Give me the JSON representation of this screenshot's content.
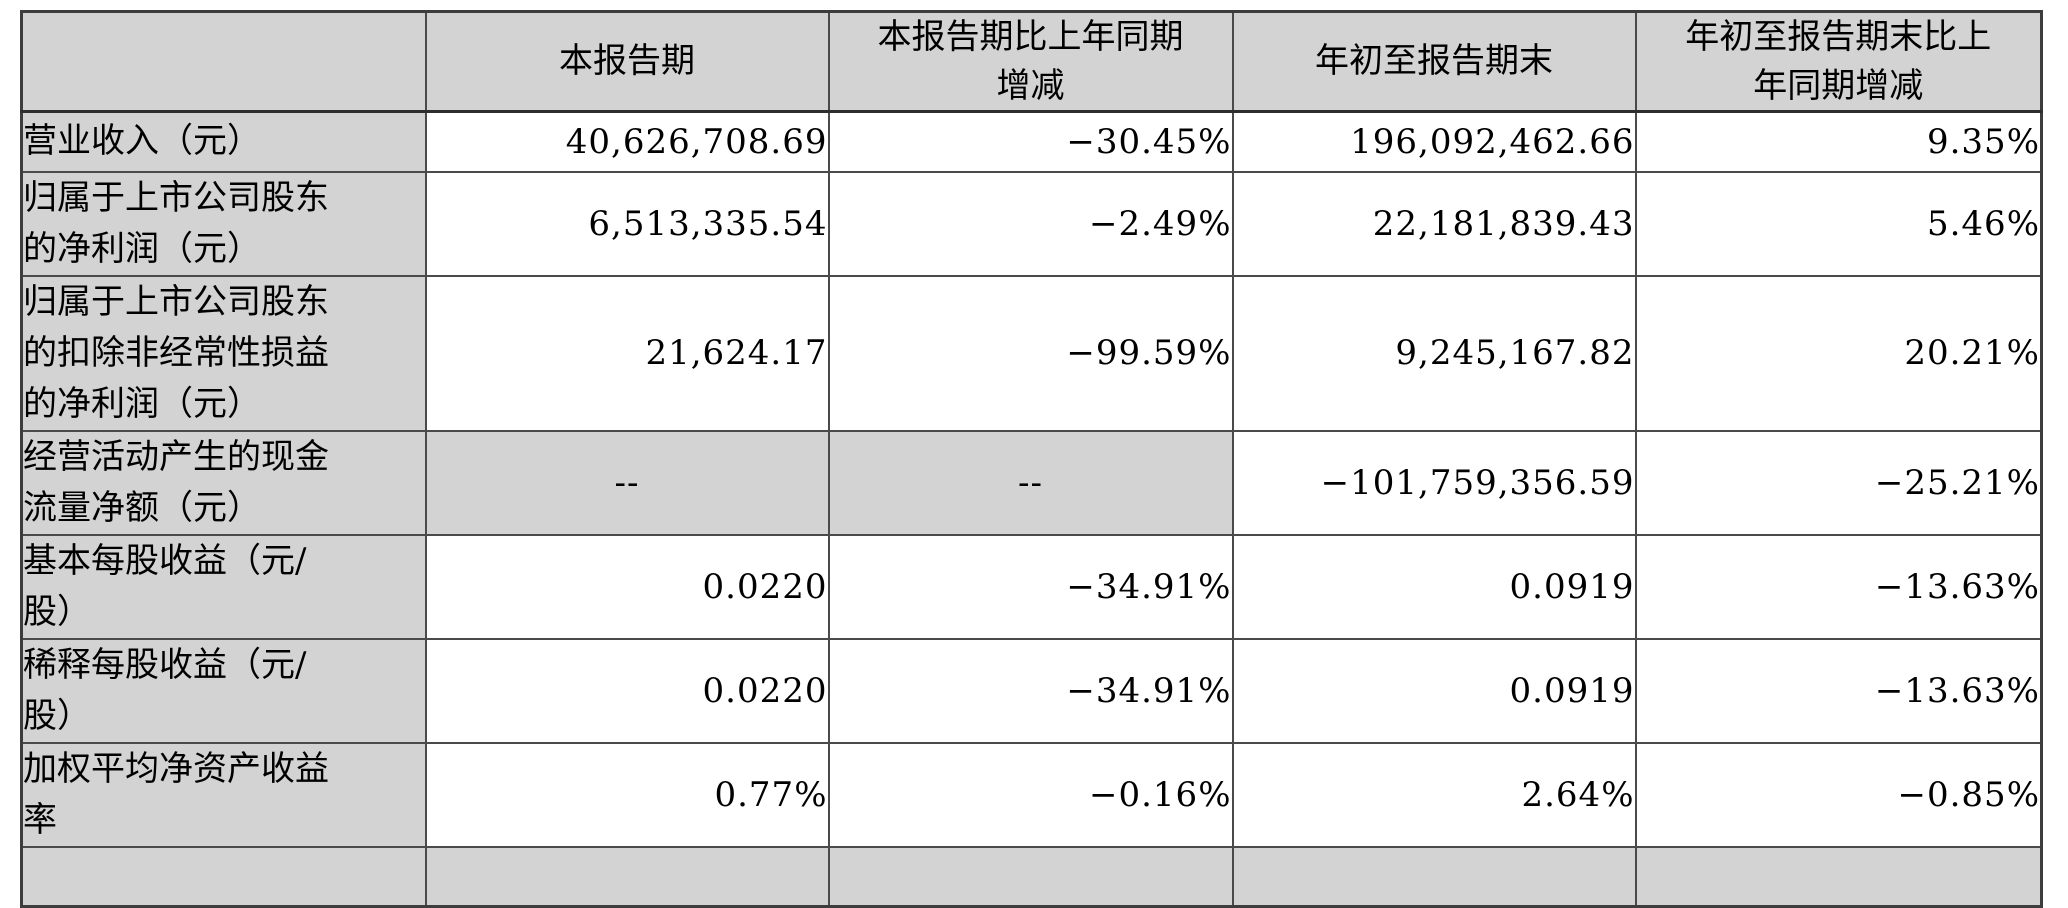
{
  "table": {
    "headers": {
      "label": "",
      "current_period": "本报告期",
      "current_period_change": "本报告期比上年同期\n增减",
      "ytd": "年初至报告期末",
      "ytd_change": "年初至报告期末比上\n年同期增减"
    },
    "rows": [
      {
        "label": "营业收入（元）",
        "current": "40,626,708.69",
        "current_change": "−30.45%",
        "ytd": "196,092,462.66",
        "ytd_change": "9.35%"
      },
      {
        "label": "归属于上市公司股东\n的净利润（元）",
        "current": "6,513,335.54",
        "current_change": "−2.49%",
        "ytd": "22,181,839.43",
        "ytd_change": "5.46%"
      },
      {
        "label": "归属于上市公司股东\n的扣除非经常性损益\n的净利润（元）",
        "current": "21,624.17",
        "current_change": "−99.59%",
        "ytd": "9,245,167.82",
        "ytd_change": "20.21%"
      },
      {
        "label": "经营活动产生的现金\n流量净额（元）",
        "current": "--",
        "current_change": "--",
        "ytd": "−101,759,356.59",
        "ytd_change": "−25.21%"
      },
      {
        "label": "基本每股收益（元/\n股）",
        "current": "0.0220",
        "current_change": "−34.91%",
        "ytd": "0.0919",
        "ytd_change": "−13.63%"
      },
      {
        "label": "稀释每股收益（元/\n股）",
        "current": "0.0220",
        "current_change": "−34.91%",
        "ytd": "0.0919",
        "ytd_change": "−13.63%"
      },
      {
        "label": "加权平均净资产收益\n率",
        "current": "0.77%",
        "current_change": "−0.16%",
        "ytd": "2.64%",
        "ytd_change": "−0.85%"
      }
    ],
    "colors": {
      "header_bg": "#d3d3d3",
      "label_bg": "#d3d3d3",
      "shaded_cell_bg": "#d3d3d3",
      "border": "#4a4a4a",
      "text": "#000000"
    }
  }
}
